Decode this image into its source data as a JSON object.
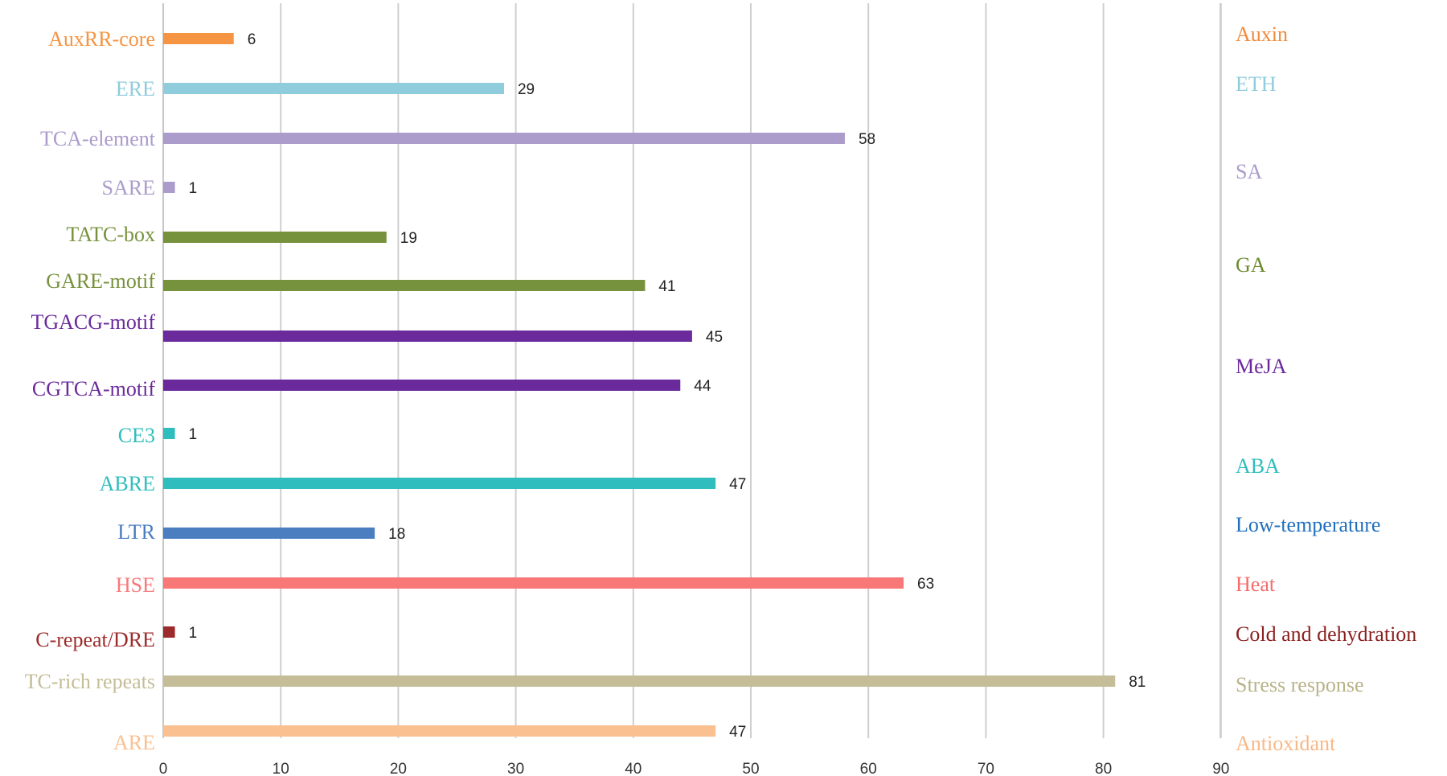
{
  "chart_data": {
    "type": "bar",
    "orientation": "horizontal",
    "title": "",
    "xlabel": "",
    "ylabel": "",
    "xlim": [
      0,
      90
    ],
    "x_ticks": [
      0,
      10,
      20,
      30,
      40,
      50,
      60,
      70,
      80,
      90
    ],
    "grid": "vertical",
    "legend": "none",
    "categories": [
      {
        "label": "AuxRR-core",
        "value": 6,
        "color": "#f59442"
      },
      {
        "label": "ERE",
        "value": 29,
        "color": "#8fccdc"
      },
      {
        "label": "TCA-element",
        "value": 58,
        "color": "#ab9ccb"
      },
      {
        "label": "SARE",
        "value": 1,
        "color": "#ab9ccb"
      },
      {
        "label": "TATC-box",
        "value": 19,
        "color": "#77923c"
      },
      {
        "label": "GARE-motif",
        "value": 41,
        "color": "#77923c"
      },
      {
        "label": "TGACG-motif",
        "value": 45,
        "color": "#6a2a9c"
      },
      {
        "label": "CGTCA-motif",
        "value": 44,
        "color": "#6a2a9c"
      },
      {
        "label": "CE3",
        "value": 1,
        "color": "#2fbdbd"
      },
      {
        "label": "ABRE",
        "value": 47,
        "color": "#2fbdbd"
      },
      {
        "label": "LTR",
        "value": 18,
        "color": "#4a7ec1"
      },
      {
        "label": "HSE",
        "value": 63,
        "color": "#f87878"
      },
      {
        "label": "C-repeat/DRE",
        "value": 1,
        "color": "#9c2b2b"
      },
      {
        "label": "TC-rich repeats",
        "value": 81,
        "color": "#c4bd97"
      },
      {
        "label": "ARE",
        "value": 47,
        "color": "#fac08f"
      }
    ],
    "groups": [
      {
        "label": "Auxin",
        "color": "#f28a3a"
      },
      {
        "label": "ETH",
        "color": "#8fccdc"
      },
      {
        "label": "SA",
        "color": "#ab9ccb"
      },
      {
        "label": "GA",
        "color": "#6b8a2c"
      },
      {
        "label": "MeJA",
        "color": "#6a2a9c"
      },
      {
        "label": "ABA",
        "color": "#2fbdbd"
      },
      {
        "label": "Low-temperature",
        "color": "#1f6fbd"
      },
      {
        "label": "Heat",
        "color": "#f46d6d"
      },
      {
        "label": "Cold and dehydration",
        "color": "#8b1f1f"
      },
      {
        "label": "Stress response",
        "color": "#b9b38a"
      },
      {
        "label": "Antioxidant",
        "color": "#f8b887"
      }
    ]
  }
}
